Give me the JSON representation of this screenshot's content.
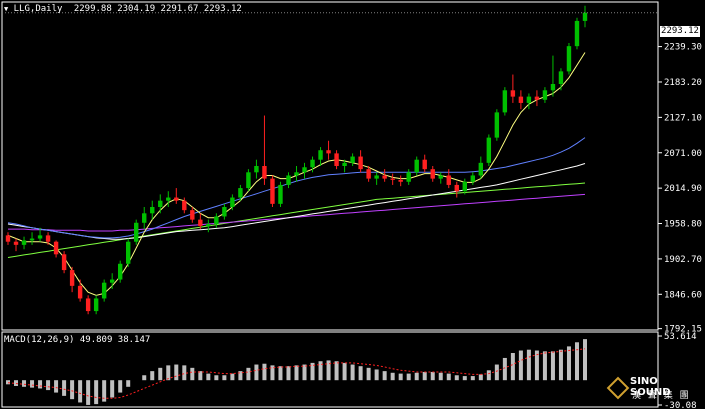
{
  "header": {
    "symbol": "LLG,Daily",
    "ohlc": "2299.88 2304.19 2291.67 2293.12"
  },
  "macd_header": "MACD(12,26,9) 49.809 38.147",
  "current_price_label": "2293.12",
  "watermark": {
    "line1": "SINO SOUND",
    "line2": "漢 聲 集 團"
  },
  "colors": {
    "up": "#00c000",
    "down": "#ff2020",
    "ma_yellow": "#ffff80",
    "ma_white": "#ffffff",
    "ma_blue": "#6080ff",
    "ma_magenta": "#c040ff",
    "ma_green": "#80ff40",
    "signal": "#ff2020",
    "hist": "#c0c0c0",
    "grid": "#ffffff"
  },
  "chart_data": [
    {
      "type": "candlestick",
      "title": "LLG,Daily",
      "y_ticks": [
        "2239.30",
        "2183.20",
        "2127.10",
        "2071.00",
        "2014.90",
        "1958.80",
        "1902.70",
        "1846.60",
        "1792.15"
      ],
      "ylim": [
        1790,
        2310
      ],
      "candles": [
        [
          1940,
          1945,
          1925,
          1930
        ],
        [
          1930,
          1935,
          1915,
          1925
        ],
        [
          1925,
          1938,
          1918,
          1932
        ],
        [
          1932,
          1945,
          1925,
          1935
        ],
        [
          1935,
          1952,
          1930,
          1940
        ],
        [
          1940,
          1945,
          1925,
          1930
        ],
        [
          1930,
          1932,
          1905,
          1910
        ],
        [
          1910,
          1915,
          1880,
          1885
        ],
        [
          1885,
          1890,
          1850,
          1860
        ],
        [
          1860,
          1870,
          1835,
          1840
        ],
        [
          1840,
          1845,
          1815,
          1820
        ],
        [
          1820,
          1845,
          1815,
          1840
        ],
        [
          1840,
          1870,
          1835,
          1865
        ],
        [
          1865,
          1880,
          1855,
          1870
        ],
        [
          1870,
          1900,
          1865,
          1895
        ],
        [
          1895,
          1935,
          1890,
          1930
        ],
        [
          1930,
          1965,
          1925,
          1960
        ],
        [
          1960,
          1985,
          1950,
          1975
        ],
        [
          1975,
          1995,
          1965,
          1985
        ],
        [
          1985,
          2005,
          1975,
          1995
        ],
        [
          1995,
          2010,
          1985,
          2000
        ],
        [
          2000,
          2015,
          1990,
          1995
        ],
        [
          1995,
          2000,
          1975,
          1980
        ],
        [
          1980,
          1985,
          1960,
          1965
        ],
        [
          1965,
          1975,
          1950,
          1955
        ],
        [
          1955,
          1965,
          1945,
          1958
        ],
        [
          1958,
          1975,
          1952,
          1970
        ],
        [
          1970,
          1990,
          1965,
          1985
        ],
        [
          1985,
          2005,
          1980,
          2000
        ],
        [
          2000,
          2020,
          1995,
          2015
        ],
        [
          2015,
          2045,
          2010,
          2040
        ],
        [
          2040,
          2060,
          2030,
          2050
        ],
        [
          2050,
          2130,
          2020,
          2030
        ],
        [
          2030,
          2035,
          1985,
          1990
        ],
        [
          1990,
          2025,
          1985,
          2020
        ],
        [
          2020,
          2040,
          2015,
          2035
        ],
        [
          2035,
          2050,
          2025,
          2040
        ],
        [
          2040,
          2055,
          2030,
          2048
        ],
        [
          2048,
          2065,
          2040,
          2060
        ],
        [
          2060,
          2080,
          2050,
          2075
        ],
        [
          2075,
          2090,
          2060,
          2070
        ],
        [
          2070,
          2075,
          2045,
          2050
        ],
        [
          2050,
          2060,
          2040,
          2055
        ],
        [
          2055,
          2070,
          2050,
          2065
        ],
        [
          2065,
          2075,
          2040,
          2045
        ],
        [
          2045,
          2050,
          2025,
          2030
        ],
        [
          2030,
          2040,
          2020,
          2035
        ],
        [
          2035,
          2045,
          2025,
          2030
        ],
        [
          2030,
          2038,
          2020,
          2028
        ],
        [
          2028,
          2035,
          2018,
          2025
        ],
        [
          2025,
          2045,
          2020,
          2040
        ],
        [
          2040,
          2065,
          2035,
          2060
        ],
        [
          2060,
          2068,
          2040,
          2045
        ],
        [
          2045,
          2050,
          2025,
          2030
        ],
        [
          2030,
          2040,
          2022,
          2035
        ],
        [
          2035,
          2045,
          2015,
          2020
        ],
        [
          2020,
          2025,
          2000,
          2010
        ],
        [
          2010,
          2030,
          2005,
          2025
        ],
        [
          2025,
          2040,
          2020,
          2035
        ],
        [
          2035,
          2065,
          2030,
          2055
        ],
        [
          2055,
          2100,
          2050,
          2095
        ],
        [
          2095,
          2140,
          2090,
          2135
        ],
        [
          2135,
          2175,
          2130,
          2170
        ],
        [
          2170,
          2195,
          2150,
          2160
        ],
        [
          2160,
          2170,
          2140,
          2150
        ],
        [
          2150,
          2165,
          2140,
          2160
        ],
        [
          2160,
          2170,
          2145,
          2155
        ],
        [
          2155,
          2175,
          2150,
          2170
        ],
        [
          2170,
          2225,
          2160,
          2180
        ],
        [
          2180,
          2205,
          2170,
          2200
        ],
        [
          2200,
          2245,
          2195,
          2240
        ],
        [
          2240,
          2285,
          2235,
          2280
        ],
        [
          2280,
          2304,
          2270,
          2293
        ]
      ],
      "ma_yellow": [
        1940,
        1935,
        1930,
        1930,
        1930,
        1928,
        1920,
        1905,
        1885,
        1865,
        1850,
        1845,
        1848,
        1860,
        1875,
        1895,
        1920,
        1945,
        1965,
        1980,
        1992,
        1998,
        1995,
        1985,
        1975,
        1968,
        1968,
        1975,
        1985,
        1995,
        2010,
        2025,
        2035,
        2035,
        2030,
        2030,
        2035,
        2040,
        2045,
        2052,
        2058,
        2060,
        2058,
        2055,
        2052,
        2048,
        2042,
        2036,
        2032,
        2030,
        2030,
        2034,
        2038,
        2038,
        2035,
        2032,
        2028,
        2024,
        2024,
        2030,
        2045,
        2065,
        2090,
        2115,
        2135,
        2148,
        2155,
        2160,
        2165,
        2175,
        2190,
        2210,
        2230
      ],
      "ma_white": [
        1958,
        1956,
        1954,
        1952,
        1950,
        1948,
        1946,
        1944,
        1942,
        1940,
        1938,
        1936,
        1935,
        1934,
        1934,
        1935,
        1936,
        1938,
        1940,
        1942,
        1944,
        1946,
        1947,
        1948,
        1949,
        1950,
        1951,
        1952,
        1954,
        1956,
        1958,
        1960,
        1962,
        1964,
        1966,
        1968,
        1970,
        1972,
        1974,
        1976,
        1978,
        1980,
        1982,
        1984,
        1986,
        1988,
        1990,
        1992,
        1994,
        1996,
        1998,
        2000,
        2002,
        2004,
        2006,
        2008,
        2010,
        2012,
        2014,
        2016,
        2018,
        2020,
        2023,
        2026,
        2029,
        2032,
        2035,
        2038,
        2041,
        2044,
        2047,
        2050,
        2054
      ],
      "ma_blue": [
        1960,
        1958,
        1955,
        1952,
        1950,
        1948,
        1946,
        1944,
        1942,
        1940,
        1938,
        1937,
        1936,
        1936,
        1937,
        1939,
        1942,
        1946,
        1950,
        1955,
        1960,
        1965,
        1970,
        1974,
        1978,
        1982,
        1986,
        1990,
        1994,
        1998,
        2002,
        2006,
        2010,
        2014,
        2018,
        2022,
        2026,
        2029,
        2032,
        2034,
        2036,
        2037,
        2038,
        2039,
        2040,
        2040,
        2040,
        2040,
        2040,
        2040,
        2040,
        2040,
        2040,
        2040,
        2040,
        2040,
        2040,
        2040,
        2041,
        2042,
        2044,
        2046,
        2048,
        2051,
        2054,
        2057,
        2060,
        2063,
        2067,
        2072,
        2078,
        2086,
        2095
      ],
      "ma_magenta": [
        1950,
        1950,
        1950,
        1949,
        1949,
        1949,
        1948,
        1948,
        1948,
        1948,
        1947,
        1947,
        1947,
        1947,
        1948,
        1948,
        1949,
        1950,
        1951,
        1952,
        1953,
        1954,
        1955,
        1956,
        1957,
        1958,
        1959,
        1960,
        1961,
        1962,
        1963,
        1964,
        1965,
        1966,
        1967,
        1968,
        1969,
        1970,
        1971,
        1972,
        1973,
        1974,
        1975,
        1976,
        1977,
        1978,
        1979,
        1980,
        1981,
        1982,
        1983,
        1984,
        1985,
        1986,
        1987,
        1988,
        1989,
        1990,
        1991,
        1992,
        1993,
        1994,
        1995,
        1996,
        1997,
        1998,
        1999,
        2000,
        2001,
        2002,
        2003,
        2004,
        2005
      ],
      "ma_green": [
        1905,
        1907,
        1909,
        1911,
        1913,
        1915,
        1917,
        1919,
        1921,
        1923,
        1925,
        1927,
        1929,
        1931,
        1933,
        1935,
        1937,
        1939,
        1941,
        1943,
        1945,
        1947,
        1949,
        1951,
        1953,
        1955,
        1957,
        1959,
        1961,
        1963,
        1965,
        1967,
        1969,
        1971,
        1973,
        1975,
        1977,
        1979,
        1981,
        1983,
        1985,
        1987,
        1989,
        1991,
        1993,
        1995,
        1997,
        1998,
        1999,
        2000,
        2001,
        2002,
        2003,
        2004,
        2005,
        2006,
        2007,
        2008,
        2009,
        2010,
        2011,
        2012,
        2013,
        2014,
        2015,
        2016,
        2017,
        2018,
        2019,
        2020,
        2021,
        2022,
        2023
      ]
    },
    {
      "type": "bar",
      "title": "MACD(12,26,9) 49.809 38.147",
      "y_ticks": [
        "53.614",
        "-30.08"
      ],
      "ylim": [
        -30.08,
        53.614
      ],
      "macd": [
        -5,
        -7,
        -8,
        -9,
        -10,
        -12,
        -15,
        -19,
        -23,
        -27,
        -30,
        -29,
        -26,
        -21,
        -15,
        -8,
        0,
        6,
        11,
        15,
        18,
        19,
        18,
        15,
        11,
        8,
        6,
        6,
        8,
        11,
        15,
        19,
        20,
        18,
        17,
        17,
        18,
        19,
        21,
        23,
        24,
        23,
        21,
        19,
        17,
        15,
        13,
        11,
        9,
        8,
        8,
        9,
        10,
        10,
        9,
        8,
        6,
        5,
        5,
        7,
        12,
        19,
        27,
        33,
        36,
        37,
        36,
        35,
        35,
        37,
        41,
        46,
        49.809
      ],
      "signal": [
        -3,
        -4,
        -5,
        -6,
        -7,
        -8,
        -9,
        -11,
        -13,
        -16,
        -19,
        -21,
        -22,
        -22,
        -21,
        -18,
        -14,
        -10,
        -6,
        -2,
        2,
        5,
        8,
        10,
        10,
        10,
        9,
        8,
        8,
        9,
        10,
        12,
        14,
        15,
        16,
        16,
        17,
        17,
        18,
        19,
        20,
        21,
        21,
        21,
        20,
        19,
        18,
        16,
        14,
        12,
        11,
        10,
        10,
        10,
        10,
        10,
        9,
        8,
        7,
        7,
        8,
        11,
        15,
        19,
        24,
        28,
        31,
        33,
        34,
        35,
        36,
        37,
        38.147
      ]
    }
  ]
}
